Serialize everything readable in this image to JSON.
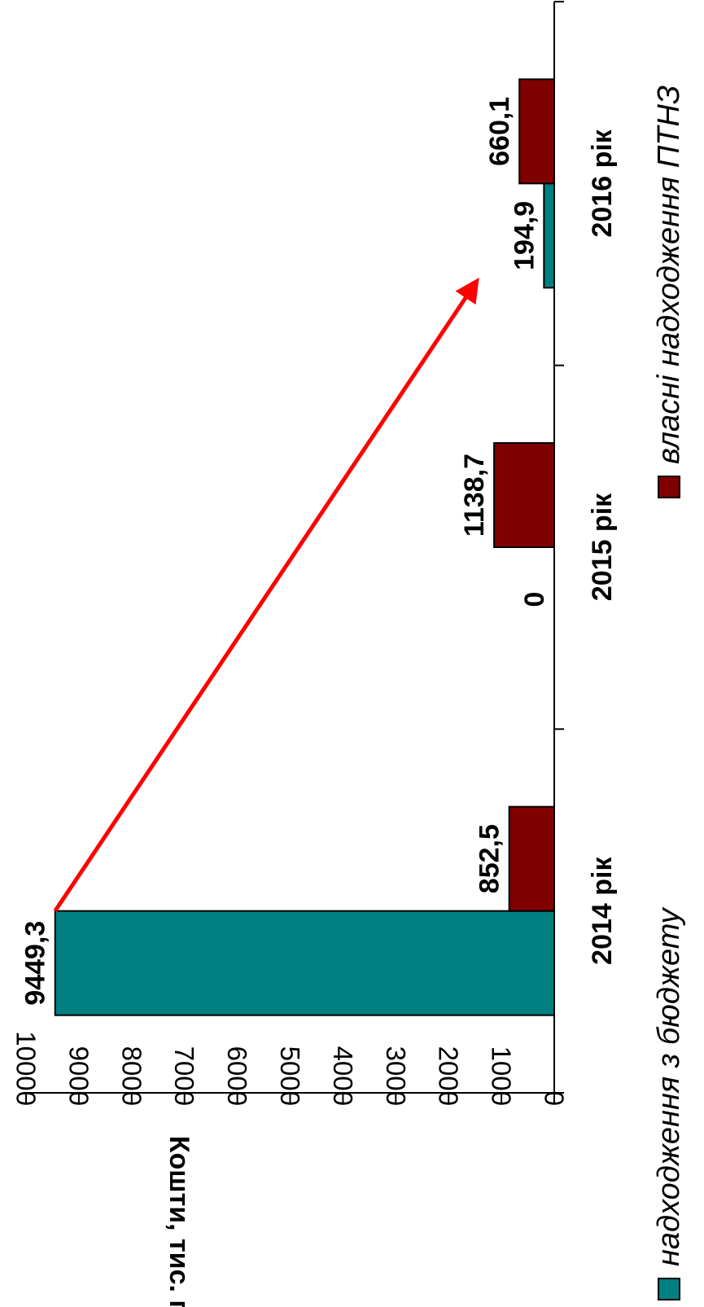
{
  "chart_data": {
    "type": "bar",
    "orientation": "vertical (rotated 90° clockwise in image)",
    "categories": [
      "2014 рік",
      "2015 рік",
      "2016 рік"
    ],
    "series": [
      {
        "name": "надходження з бюджету",
        "color": "#008080",
        "values": [
          9449.3,
          0,
          194.9
        ],
        "labels": [
          "9449,3",
          "0",
          "194,9"
        ]
      },
      {
        "name": "власні надходження ПТНЗ",
        "color": "#800000",
        "values": [
          852.5,
          1138.7,
          660.1
        ],
        "labels": [
          "852,5",
          "1138,7",
          "660,1"
        ]
      }
    ],
    "ylabel": "Кошти, тис. грн.",
    "ylim": [
      0,
      10000
    ],
    "yticks": [
      "0",
      "1000",
      "2000",
      "3000",
      "4000",
      "5000",
      "6000",
      "7000",
      "8000",
      "9000",
      "10000"
    ],
    "grid": false,
    "legend": "bottom",
    "annotation": {
      "type": "arrow",
      "color": "#ff0000",
      "from": {
        "category": "2014 рік",
        "series": "надходження з бюджету"
      },
      "to": {
        "category": "2016 рік",
        "series": "надходження з бюджету"
      }
    }
  }
}
